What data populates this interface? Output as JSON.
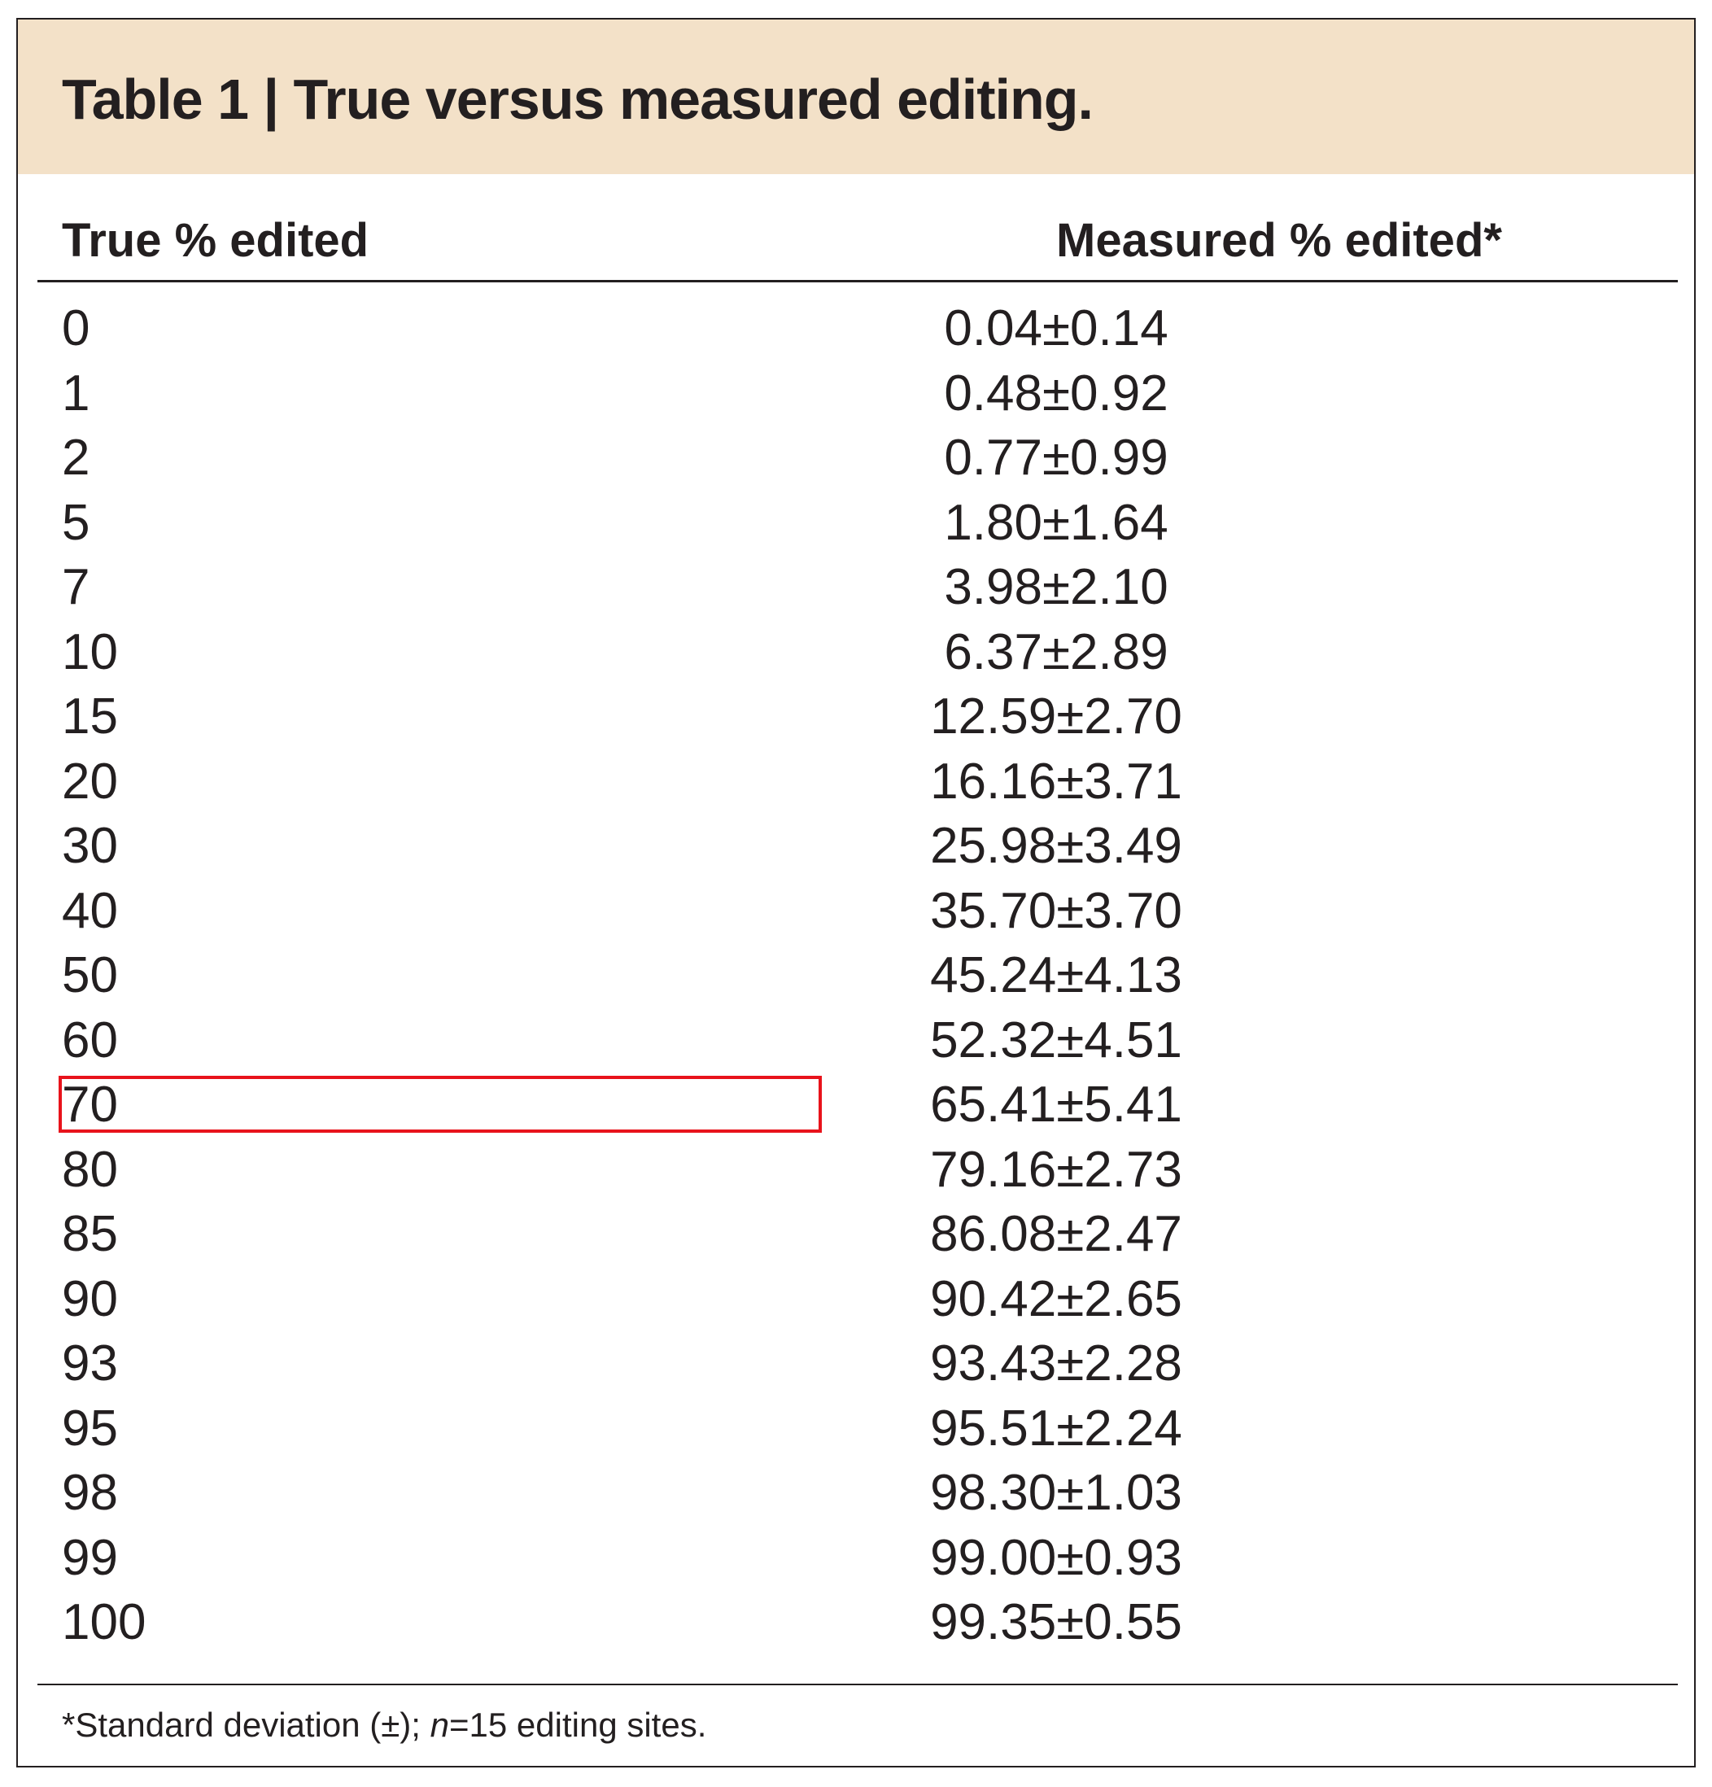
{
  "table": {
    "title": "Table 1 | True versus measured editing.",
    "headers": {
      "true_col": "True % edited",
      "measured_col": "Measured % edited*"
    },
    "rows": [
      {
        "true": "0",
        "measured": "0.04±0.14"
      },
      {
        "true": "1",
        "measured": "0.48±0.92"
      },
      {
        "true": "2",
        "measured": "0.77±0.99"
      },
      {
        "true": "5",
        "measured": "1.80±1.64"
      },
      {
        "true": "7",
        "measured": "3.98±2.10"
      },
      {
        "true": "10",
        "measured": "6.37±2.89"
      },
      {
        "true": "15",
        "measured": "12.59±2.70"
      },
      {
        "true": "20",
        "measured": "16.16±3.71"
      },
      {
        "true": "30",
        "measured": "25.98±3.49"
      },
      {
        "true": "40",
        "measured": "35.70±3.70"
      },
      {
        "true": "50",
        "measured": "45.24±4.13"
      },
      {
        "true": "60",
        "measured": "52.32±4.51"
      },
      {
        "true": "70",
        "measured": "65.41±5.41",
        "highlighted": true
      },
      {
        "true": "80",
        "measured": "79.16±2.73"
      },
      {
        "true": "85",
        "measured": "86.08±2.47"
      },
      {
        "true": "90",
        "measured": "90.42±2.65"
      },
      {
        "true": "93",
        "measured": "93.43±2.28"
      },
      {
        "true": "95",
        "measured": "95.51±2.24"
      },
      {
        "true": "98",
        "measured": "98.30±1.03"
      },
      {
        "true": "99",
        "measured": "99.00±0.93"
      },
      {
        "true": "100",
        "measured": "99.35±0.55"
      }
    ],
    "footnote": {
      "prefix": "*Standard deviation (±); ",
      "n_symbol": "n",
      "suffix": "=15 editing sites."
    }
  },
  "colors": {
    "title_band": "#f3e1c8",
    "text": "#231f20",
    "highlight_box": "#e8131b"
  }
}
